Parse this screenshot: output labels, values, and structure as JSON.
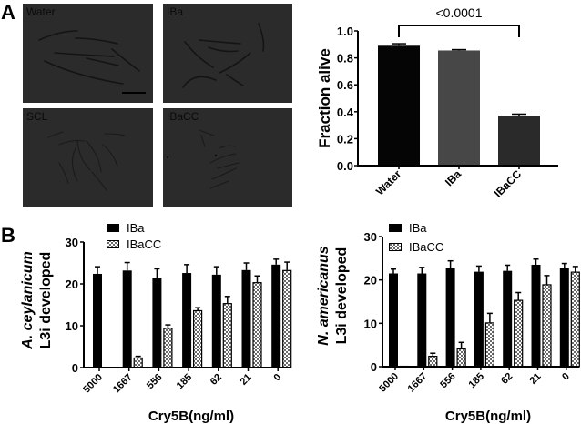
{
  "panels": {
    "A": {
      "letter": "A"
    },
    "B": {
      "letter": "B"
    }
  },
  "micrographs": [
    {
      "label": "Water",
      "scale_bar": true
    },
    {
      "label": "IBa",
      "scale_bar": false
    },
    {
      "label": "SCL",
      "scale_bar": false
    },
    {
      "label": "IBaCC",
      "scale_bar": false
    }
  ],
  "colors": {
    "black": "#000000",
    "water_bar": "#050505",
    "iba_bar": "#474747",
    "ibacc_bar": "#2a2a2a",
    "micrograph_bg": "#2b2b2b",
    "worm": "#141414"
  },
  "chart_data": [
    {
      "id": "A",
      "type": "bar",
      "title": "",
      "categories": [
        "Water",
        "IBa",
        "IBaCC"
      ],
      "values": [
        0.89,
        0.855,
        0.37
      ],
      "errors": [
        0.015,
        0.006,
        0.012
      ],
      "ylabel": "Fraction alive",
      "xlabel": "",
      "ylim": [
        0,
        1.0
      ],
      "yticks": [
        "0.0",
        "0.2",
        "0.4",
        "0.6",
        "0.8",
        "1.0"
      ],
      "annotation": {
        "text": "<0.0001",
        "from": "Water",
        "to": "IBaCC"
      },
      "grid": false
    },
    {
      "id": "B-left",
      "type": "bar",
      "categories": [
        "5000",
        "1667",
        "556",
        "185",
        "62",
        "21",
        "0"
      ],
      "series": [
        {
          "name": "IBa",
          "values": [
            22.4,
            23.2,
            21.5,
            22.6,
            22.2,
            23.3,
            24.6
          ],
          "errors": [
            1.7,
            1.9,
            2.1,
            2.0,
            1.9,
            1.7,
            1.3
          ]
        },
        {
          "name": "IBaCC",
          "values": [
            0,
            2.4,
            9.5,
            13.7,
            15.4,
            20.4,
            23.3
          ],
          "errors": [
            0,
            0.3,
            0.7,
            0.6,
            1.6,
            1.5,
            1.9
          ]
        }
      ],
      "ylabel_line1": "A. ceylanicum",
      "ylabel_line2": "L3i developed",
      "xlabel": "Cry5B(ng/ml)",
      "ylim": [
        0,
        30
      ],
      "yticks": [
        "0",
        "10",
        "20",
        "30"
      ],
      "legend": [
        "IBa",
        "IBaCC"
      ],
      "legend_position": "top-left",
      "grid": false
    },
    {
      "id": "B-right",
      "type": "bar",
      "categories": [
        "5000",
        "1667",
        "556",
        "185",
        "62",
        "21",
        "0"
      ],
      "series": [
        {
          "name": "IBa",
          "values": [
            21.5,
            21.5,
            22.7,
            21.9,
            22.1,
            23.5,
            22.7
          ],
          "errors": [
            1.0,
            1.4,
            1.7,
            1.3,
            1.3,
            1.3,
            1.1
          ]
        },
        {
          "name": "IBaCC",
          "values": [
            0.2,
            2.5,
            4.2,
            10.2,
            15.4,
            19.0,
            21.9
          ],
          "errors": [
            0,
            0.6,
            1.4,
            2.1,
            1.7,
            2.0,
            1.2
          ]
        }
      ],
      "ylabel_line1": "N. americanus",
      "ylabel_line2": "L3i developed",
      "xlabel": "Cry5B(ng/ml)",
      "ylim": [
        0,
        30
      ],
      "yticks": [
        "0",
        "10",
        "20",
        "30"
      ],
      "legend": [
        "IBa",
        "IBaCC"
      ],
      "legend_position": "top-left",
      "grid": false
    }
  ]
}
